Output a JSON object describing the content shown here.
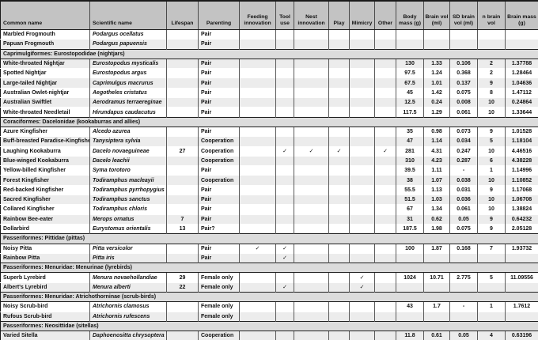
{
  "table": {
    "checkmark_glyph": "✓",
    "columns": [
      {
        "key": "common",
        "label": "Common name"
      },
      {
        "key": "scientific",
        "label": "Scientific name"
      },
      {
        "key": "lifespan",
        "label": "Lifespan"
      },
      {
        "key": "parenting",
        "label": "Parenting"
      },
      {
        "key": "feeding",
        "label": "Feeding innovation"
      },
      {
        "key": "tool",
        "label": "Tool use"
      },
      {
        "key": "nest",
        "label": "Nest innovation"
      },
      {
        "key": "play",
        "label": "Play"
      },
      {
        "key": "mimicry",
        "label": "Mimicry"
      },
      {
        "key": "other",
        "label": "Other"
      },
      {
        "key": "body_mass",
        "label": "Body mass (g)"
      },
      {
        "key": "brain_vol",
        "label": "Brain vol (ml)"
      },
      {
        "key": "sd_brain_vol",
        "label": "SD brain vol (ml)"
      },
      {
        "key": "n_brain_vol",
        "label": "n brain vol"
      },
      {
        "key": "brain_mass",
        "label": "Brain mass (g)"
      }
    ],
    "rows": [
      {
        "type": "data",
        "shade": "w",
        "common": "Marbled Frogmouth",
        "scientific": "Podargus ocellatus",
        "lifespan": "",
        "parenting": "Pair",
        "feeding": false,
        "tool": false,
        "nest": false,
        "play": false,
        "mimicry": false,
        "other": false,
        "body_mass": "",
        "brain_vol": "",
        "sd_brain_vol": "",
        "n_brain_vol": "",
        "brain_mass": ""
      },
      {
        "type": "data",
        "shade": "g",
        "common": "Papuan Frogmouth",
        "scientific": "Podargus papuensis",
        "lifespan": "",
        "parenting": "Pair",
        "feeding": false,
        "tool": false,
        "nest": false,
        "play": false,
        "mimicry": false,
        "other": false,
        "body_mass": "",
        "brain_vol": "",
        "sd_brain_vol": "",
        "n_brain_vol": "",
        "brain_mass": ""
      },
      {
        "type": "section",
        "label": "Caprimulgiformes: Eurostopodidae (nightjars)"
      },
      {
        "type": "data",
        "shade": "g",
        "common": "White-throated Nightjar",
        "scientific": "Eurostopodus mysticalis",
        "lifespan": "",
        "parenting": "Pair",
        "feeding": false,
        "tool": false,
        "nest": false,
        "play": false,
        "mimicry": false,
        "other": false,
        "body_mass": "130",
        "brain_vol": "1.33",
        "sd_brain_vol": "0.106",
        "n_brain_vol": "2",
        "brain_mass": "1.37788"
      },
      {
        "type": "data",
        "shade": "w",
        "common": "Spotted Nightjar",
        "scientific": "Eurostopodus argus",
        "lifespan": "",
        "parenting": "Pair",
        "feeding": false,
        "tool": false,
        "nest": false,
        "play": false,
        "mimicry": false,
        "other": false,
        "body_mass": "97.5",
        "brain_vol": "1.24",
        "sd_brain_vol": "0.368",
        "n_brain_vol": "2",
        "brain_mass": "1.28464"
      },
      {
        "type": "data",
        "shade": "g",
        "common": "Large-tailed Nightjar",
        "scientific": "Caprimulgus macrurus",
        "lifespan": "",
        "parenting": "Pair",
        "feeding": false,
        "tool": false,
        "nest": false,
        "play": false,
        "mimicry": false,
        "other": false,
        "body_mass": "67.5",
        "brain_vol": "1.01",
        "sd_brain_vol": "0.137",
        "n_brain_vol": "9",
        "brain_mass": "1.04636"
      },
      {
        "type": "data",
        "shade": "w",
        "common": "Australian Owlet-nightjar",
        "scientific": "Aegotheles cristatus",
        "lifespan": "",
        "parenting": "Pair",
        "feeding": false,
        "tool": false,
        "nest": false,
        "play": false,
        "mimicry": false,
        "other": false,
        "body_mass": "45",
        "brain_vol": "1.42",
        "sd_brain_vol": "0.075",
        "n_brain_vol": "8",
        "brain_mass": "1.47112"
      },
      {
        "type": "data",
        "shade": "g",
        "common": "Australian Swiftlet",
        "scientific": "Aerodramus terraereginae",
        "lifespan": "",
        "parenting": "Pair",
        "feeding": false,
        "tool": false,
        "nest": false,
        "play": false,
        "mimicry": false,
        "other": false,
        "body_mass": "12.5",
        "brain_vol": "0.24",
        "sd_brain_vol": "0.008",
        "n_brain_vol": "10",
        "brain_mass": "0.24864"
      },
      {
        "type": "data",
        "shade": "w",
        "common": "White-throated Needletail",
        "scientific": "Hirundapus caudacutus",
        "lifespan": "",
        "parenting": "Pair",
        "feeding": false,
        "tool": false,
        "nest": false,
        "play": false,
        "mimicry": false,
        "other": false,
        "body_mass": "117.5",
        "brain_vol": "1.29",
        "sd_brain_vol": "0.061",
        "n_brain_vol": "10",
        "brain_mass": "1.33644"
      },
      {
        "type": "section",
        "label": "Coraciformes: Dacelonidae (kookaburras and allies)"
      },
      {
        "type": "data",
        "shade": "w",
        "common": "Azure Kingfisher",
        "scientific": "Alcedo azurea",
        "lifespan": "",
        "parenting": "Pair",
        "feeding": false,
        "tool": false,
        "nest": false,
        "play": false,
        "mimicry": false,
        "other": false,
        "body_mass": "35",
        "brain_vol": "0.98",
        "sd_brain_vol": "0.073",
        "n_brain_vol": "9",
        "brain_mass": "1.01528"
      },
      {
        "type": "data",
        "shade": "g",
        "common": "Buff-breasted Paradise-Kingfisher",
        "scientific": "Tanysiptera sylvia",
        "lifespan": "",
        "parenting": "Cooperation",
        "feeding": false,
        "tool": false,
        "nest": false,
        "play": false,
        "mimicry": false,
        "other": false,
        "body_mass": "47",
        "brain_vol": "1.14",
        "sd_brain_vol": "0.034",
        "n_brain_vol": "5",
        "brain_mass": "1.18104"
      },
      {
        "type": "data",
        "shade": "w",
        "common": "Laughing Kookaburra",
        "scientific": "Dacelo novaeguineae",
        "lifespan": "27",
        "parenting": "Cooperation",
        "feeding": false,
        "tool": true,
        "nest": true,
        "play": true,
        "mimicry": false,
        "other": true,
        "body_mass": "281",
        "brain_vol": "4.31",
        "sd_brain_vol": "0.247",
        "n_brain_vol": "10",
        "brain_mass": "4.46516"
      },
      {
        "type": "data",
        "shade": "g",
        "common": "Blue-winged Kookaburra",
        "scientific": "Dacelo leachii",
        "lifespan": "",
        "parenting": "Cooperation",
        "feeding": false,
        "tool": false,
        "nest": false,
        "play": false,
        "mimicry": false,
        "other": false,
        "body_mass": "310",
        "brain_vol": "4.23",
        "sd_brain_vol": "0.287",
        "n_brain_vol": "6",
        "brain_mass": "4.38228"
      },
      {
        "type": "data",
        "shade": "w",
        "common": "Yellow-billed Kingfisher",
        "scientific": "Syma torotoro",
        "lifespan": "",
        "parenting": "Pair",
        "feeding": false,
        "tool": false,
        "nest": false,
        "play": false,
        "mimicry": false,
        "other": false,
        "body_mass": "39.5",
        "brain_vol": "1.11",
        "sd_brain_vol": "-",
        "n_brain_vol": "1",
        "brain_mass": "1.14996"
      },
      {
        "type": "data",
        "shade": "g",
        "common": "Forest Kingfisher",
        "scientific": "Todiramphus macleayii",
        "lifespan": "",
        "parenting": "Cooperation",
        "feeding": false,
        "tool": false,
        "nest": false,
        "play": false,
        "mimicry": false,
        "other": false,
        "body_mass": "38",
        "brain_vol": "1.07",
        "sd_brain_vol": "0.038",
        "n_brain_vol": "10",
        "brain_mass": "1.10852"
      },
      {
        "type": "data",
        "shade": "w",
        "common": "Red-backed Kingfisher",
        "scientific": "Todiramphus pyrrhopygius",
        "lifespan": "",
        "parenting": "Pair",
        "feeding": false,
        "tool": false,
        "nest": false,
        "play": false,
        "mimicry": false,
        "other": false,
        "body_mass": "55.5",
        "brain_vol": "1.13",
        "sd_brain_vol": "0.031",
        "n_brain_vol": "9",
        "brain_mass": "1.17068"
      },
      {
        "type": "data",
        "shade": "g",
        "common": "Sacred Kingfisher",
        "scientific": "Todiramphus sanctus",
        "lifespan": "",
        "parenting": "Pair",
        "feeding": false,
        "tool": false,
        "nest": false,
        "play": false,
        "mimicry": false,
        "other": false,
        "body_mass": "51.5",
        "brain_vol": "1.03",
        "sd_brain_vol": "0.036",
        "n_brain_vol": "10",
        "brain_mass": "1.06708"
      },
      {
        "type": "data",
        "shade": "w",
        "common": "Collared Kingfisher",
        "scientific": "Todiramphus chloris",
        "lifespan": "",
        "parenting": "Pair",
        "feeding": false,
        "tool": false,
        "nest": false,
        "play": false,
        "mimicry": false,
        "other": false,
        "body_mass": "67",
        "brain_vol": "1.34",
        "sd_brain_vol": "0.061",
        "n_brain_vol": "10",
        "brain_mass": "1.38824"
      },
      {
        "type": "data",
        "shade": "g",
        "common": "Rainbow Bee-eater",
        "scientific": "Merops ornatus",
        "lifespan": "7",
        "parenting": "Pair",
        "feeding": false,
        "tool": false,
        "nest": false,
        "play": false,
        "mimicry": false,
        "other": false,
        "body_mass": "31",
        "brain_vol": "0.62",
        "sd_brain_vol": "0.05",
        "n_brain_vol": "9",
        "brain_mass": "0.64232"
      },
      {
        "type": "data",
        "shade": "w",
        "common": "Dollarbird",
        "scientific": "Eurystomus orientalis",
        "lifespan": "13",
        "parenting": "Pair?",
        "feeding": false,
        "tool": false,
        "nest": false,
        "play": false,
        "mimicry": false,
        "other": false,
        "body_mass": "187.5",
        "brain_vol": "1.98",
        "sd_brain_vol": "0.075",
        "n_brain_vol": "9",
        "brain_mass": "2.05128"
      },
      {
        "type": "section",
        "label": "Passeriformes: Pittidae (pittas)"
      },
      {
        "type": "data",
        "shade": "w",
        "common": "Noisy Pitta",
        "scientific": "Pitta versicolor",
        "lifespan": "",
        "parenting": "Pair",
        "feeding": true,
        "tool": true,
        "nest": false,
        "play": false,
        "mimicry": false,
        "other": false,
        "body_mass": "100",
        "brain_vol": "1.87",
        "sd_brain_vol": "0.168",
        "n_brain_vol": "7",
        "brain_mass": "1.93732"
      },
      {
        "type": "data",
        "shade": "g",
        "common": "Rainbow Pitta",
        "scientific": "Pitta iris",
        "lifespan": "",
        "parenting": "Pair",
        "feeding": false,
        "tool": true,
        "nest": false,
        "play": false,
        "mimicry": false,
        "other": false,
        "body_mass": "",
        "brain_vol": "",
        "sd_brain_vol": "",
        "n_brain_vol": "",
        "brain_mass": ""
      },
      {
        "type": "section",
        "label": "Passeriformes: Menuridae: Menurinae (lyrebirds)"
      },
      {
        "type": "data",
        "shade": "w",
        "common": "Superb Lyrebird",
        "scientific": "Menura novaehollandiae",
        "lifespan": "29",
        "parenting": "Female only",
        "feeding": false,
        "tool": false,
        "nest": false,
        "play": false,
        "mimicry": true,
        "other": false,
        "body_mass": "1024",
        "brain_vol": "10.71",
        "sd_brain_vol": "2.775",
        "n_brain_vol": "5",
        "brain_mass": "11.09556"
      },
      {
        "type": "data",
        "shade": "g",
        "common": "Albert's Lyrebird",
        "scientific": "Menura alberti",
        "lifespan": "22",
        "parenting": "Female only",
        "feeding": false,
        "tool": true,
        "nest": false,
        "play": false,
        "mimicry": true,
        "other": false,
        "body_mass": "",
        "brain_vol": "",
        "sd_brain_vol": "",
        "n_brain_vol": "",
        "brain_mass": ""
      },
      {
        "type": "section",
        "label": "Passeriformes: Menuridae: Atrichothorninae (scrub-birds)"
      },
      {
        "type": "data",
        "shade": "w",
        "common": "Noisy Scrub-bird",
        "scientific": "Atrichornis clamosus",
        "lifespan": "",
        "parenting": "Female only",
        "feeding": false,
        "tool": false,
        "nest": false,
        "play": false,
        "mimicry": false,
        "other": false,
        "body_mass": "43",
        "brain_vol": "1.7",
        "sd_brain_vol": "-",
        "n_brain_vol": "1",
        "brain_mass": "1.7612"
      },
      {
        "type": "data",
        "shade": "g",
        "common": "Rufous Scrub-bird",
        "scientific": "Atrichornis rufescens",
        "lifespan": "",
        "parenting": "Female only",
        "feeding": false,
        "tool": false,
        "nest": false,
        "play": false,
        "mimicry": false,
        "other": false,
        "body_mass": "",
        "brain_vol": "",
        "sd_brain_vol": "",
        "n_brain_vol": "",
        "brain_mass": ""
      },
      {
        "type": "section",
        "label": "Passeriformes: Neosittidae (sitellas)"
      },
      {
        "type": "data",
        "shade": "g",
        "common": "Varied Sitella",
        "scientific": "Daphoenositta chrysoptera",
        "lifespan": "",
        "parenting": "Cooperation",
        "feeding": false,
        "tool": false,
        "nest": false,
        "play": false,
        "mimicry": false,
        "other": false,
        "body_mass": "11.8",
        "brain_vol": "0.61",
        "sd_brain_vol": "0.05",
        "n_brain_vol": "4",
        "brain_mass": "0.63196"
      }
    ],
    "colors": {
      "header_bg": "#c3c3c3",
      "section_bg": "#dcdcdc",
      "zebra_gray": "#ececec",
      "row_white": "#ffffff",
      "grid_line": "#5a5a5a",
      "text": "#111111"
    }
  }
}
